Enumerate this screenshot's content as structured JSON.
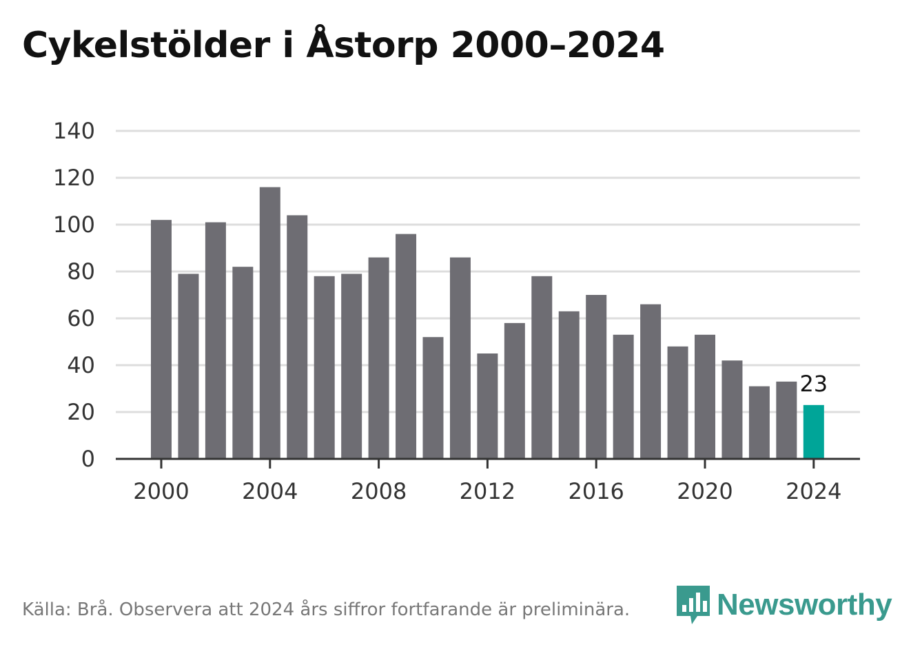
{
  "header": {
    "title": "Cykelstölder i Åstorp 2000–2024"
  },
  "footer": {
    "source": "Källa: Brå. Observera att 2024 års siffror fortfarande är preliminära."
  },
  "brand": {
    "name": "Newsworthy",
    "color": "#3a9a8e",
    "icon": "bar-chart-logo-icon"
  },
  "colors": {
    "bar": "#6e6d73",
    "highlight": "#00a598",
    "grid": "#dddddd",
    "axis": "#333333"
  },
  "chart_data": {
    "type": "bar",
    "title": "Cykelstölder i Åstorp 2000–2024",
    "xlabel": "",
    "ylabel": "",
    "categories": [
      "2000",
      "2001",
      "2002",
      "2003",
      "2004",
      "2005",
      "2006",
      "2007",
      "2008",
      "2009",
      "2010",
      "2011",
      "2012",
      "2013",
      "2014",
      "2015",
      "2016",
      "2017",
      "2018",
      "2019",
      "2020",
      "2021",
      "2022",
      "2023",
      "2024"
    ],
    "values": [
      102,
      79,
      101,
      82,
      116,
      104,
      78,
      79,
      86,
      96,
      52,
      86,
      45,
      58,
      78,
      63,
      70,
      53,
      66,
      48,
      53,
      42,
      31,
      33,
      23
    ],
    "ylim": [
      0,
      140
    ],
    "yticks": [
      0,
      20,
      40,
      60,
      80,
      100,
      120,
      140
    ],
    "xticks": [
      "2000",
      "2004",
      "2008",
      "2012",
      "2016",
      "2020",
      "2024"
    ],
    "highlight": {
      "category": "2024",
      "label": "23"
    },
    "grid": true
  }
}
